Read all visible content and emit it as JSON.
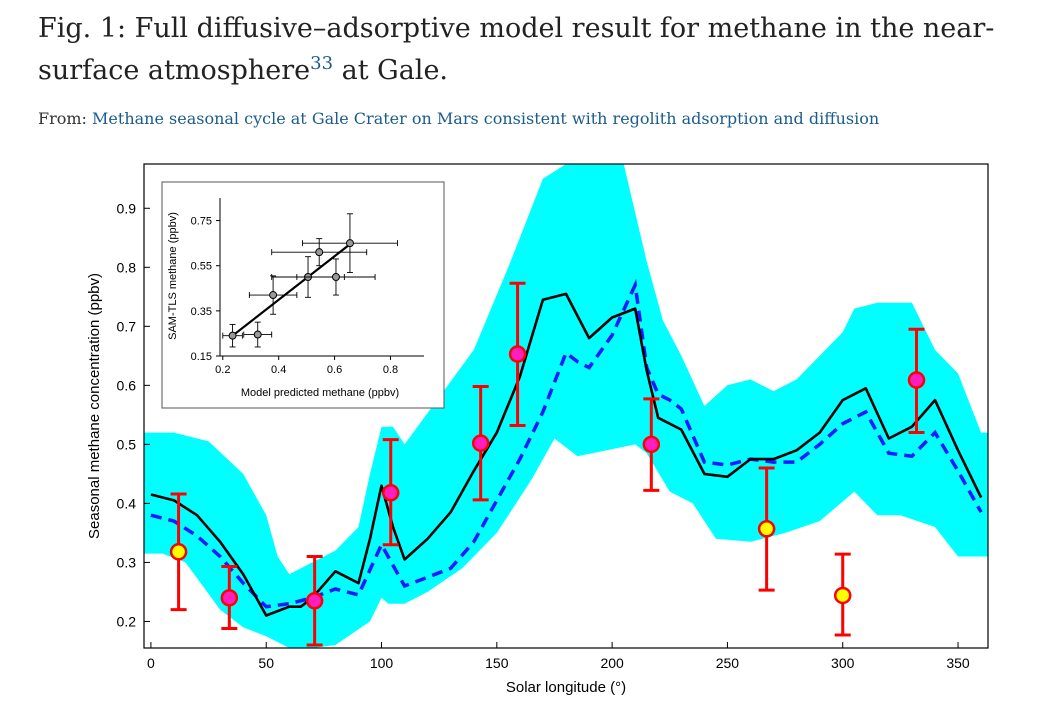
{
  "header": {
    "title_main": "Fig. 1: Full diffusive–adsorptive model result for methane in the near-surface atmosphere",
    "title_ref": "33",
    "title_end": " at Gale.",
    "from_label": "From: ",
    "source_link": "Methane seasonal cycle at Gale Crater on Mars consistent with regolith adsorption and diffusion"
  },
  "colors": {
    "envelope": "#00ffff",
    "model_line": "#000000",
    "dashed_line": "#1a1aff",
    "error_bar": "#ff0000",
    "point_magenta": "#ff1fbf",
    "point_yellow": "#ffff00"
  },
  "chart_data": [
    {
      "type": "line",
      "xlabel": "Solar longitude (°)",
      "ylabel": "Seasonal methane concentration (ppbv)",
      "xlim": [
        -3,
        363
      ],
      "ylim": [
        0.155,
        0.975
      ],
      "x_ticks": [
        0,
        50,
        100,
        150,
        200,
        250,
        300,
        350
      ],
      "y_ticks": [
        0.2,
        0.3,
        0.4,
        0.5,
        0.6,
        0.7,
        0.8,
        0.9
      ],
      "grid": false,
      "envelope": {
        "upper": [
          [
            -3,
            0.52
          ],
          [
            10,
            0.52
          ],
          [
            25,
            0.505
          ],
          [
            40,
            0.45
          ],
          [
            50,
            0.38
          ],
          [
            55,
            0.31
          ],
          [
            60,
            0.28
          ],
          [
            70,
            0.3
          ],
          [
            80,
            0.32
          ],
          [
            90,
            0.36
          ],
          [
            95,
            0.45
          ],
          [
            100,
            0.53
          ],
          [
            105,
            0.53
          ],
          [
            110,
            0.5
          ],
          [
            125,
            0.58
          ],
          [
            140,
            0.66
          ],
          [
            155,
            0.8
          ],
          [
            170,
            0.95
          ],
          [
            180,
            0.975
          ],
          [
            190,
            0.975
          ],
          [
            205,
            0.975
          ],
          [
            215,
            0.81
          ],
          [
            222,
            0.71
          ],
          [
            230,
            0.65
          ],
          [
            240,
            0.565
          ],
          [
            250,
            0.6
          ],
          [
            260,
            0.61
          ],
          [
            270,
            0.59
          ],
          [
            280,
            0.61
          ],
          [
            290,
            0.65
          ],
          [
            300,
            0.69
          ],
          [
            305,
            0.73
          ],
          [
            315,
            0.74
          ],
          [
            330,
            0.74
          ],
          [
            340,
            0.66
          ],
          [
            350,
            0.62
          ],
          [
            360,
            0.52
          ],
          [
            363,
            0.52
          ]
        ],
        "lower": [
          [
            -3,
            0.315
          ],
          [
            5,
            0.315
          ],
          [
            15,
            0.3
          ],
          [
            30,
            0.22
          ],
          [
            40,
            0.19
          ],
          [
            50,
            0.175
          ],
          [
            60,
            0.155
          ],
          [
            70,
            0.155
          ],
          [
            80,
            0.16
          ],
          [
            95,
            0.2
          ],
          [
            100,
            0.24
          ],
          [
            103,
            0.23
          ],
          [
            110,
            0.23
          ],
          [
            120,
            0.25
          ],
          [
            135,
            0.29
          ],
          [
            150,
            0.35
          ],
          [
            165,
            0.44
          ],
          [
            175,
            0.51
          ],
          [
            185,
            0.48
          ],
          [
            210,
            0.5
          ],
          [
            215,
            0.485
          ],
          [
            225,
            0.42
          ],
          [
            235,
            0.4
          ],
          [
            245,
            0.34
          ],
          [
            260,
            0.335
          ],
          [
            275,
            0.35
          ],
          [
            290,
            0.37
          ],
          [
            305,
            0.42
          ],
          [
            315,
            0.38
          ],
          [
            325,
            0.38
          ],
          [
            340,
            0.36
          ],
          [
            350,
            0.31
          ],
          [
            360,
            0.31
          ],
          [
            363,
            0.31
          ]
        ]
      },
      "series": [
        {
          "style": "solid",
          "x": [
            0,
            10,
            20,
            30,
            40,
            50,
            60,
            65,
            70,
            80,
            85,
            90,
            95,
            100,
            105,
            110,
            120,
            130,
            140,
            150,
            160,
            170,
            180,
            190,
            200,
            210,
            215,
            220,
            230,
            240,
            250,
            260,
            270,
            280,
            290,
            300,
            310,
            320,
            330,
            340,
            350,
            360
          ],
          "values": [
            0.415,
            0.405,
            0.38,
            0.335,
            0.28,
            0.21,
            0.225,
            0.225,
            0.24,
            0.285,
            0.275,
            0.265,
            0.34,
            0.43,
            0.36,
            0.305,
            0.34,
            0.385,
            0.455,
            0.52,
            0.615,
            0.745,
            0.755,
            0.68,
            0.715,
            0.73,
            0.625,
            0.545,
            0.525,
            0.45,
            0.445,
            0.475,
            0.475,
            0.49,
            0.52,
            0.575,
            0.595,
            0.51,
            0.53,
            0.575,
            0.49,
            0.41
          ]
        },
        {
          "style": "dashed",
          "x": [
            0,
            10,
            20,
            30,
            40,
            50,
            60,
            70,
            80,
            90,
            100,
            110,
            120,
            130,
            140,
            150,
            160,
            170,
            180,
            185,
            190,
            200,
            210,
            215,
            220,
            225,
            230,
            240,
            250,
            260,
            270,
            280,
            290,
            300,
            310,
            320,
            330,
            340,
            350,
            360
          ],
          "values": [
            0.38,
            0.37,
            0.345,
            0.31,
            0.265,
            0.225,
            0.23,
            0.24,
            0.255,
            0.245,
            0.33,
            0.26,
            0.275,
            0.29,
            0.335,
            0.405,
            0.475,
            0.555,
            0.655,
            0.64,
            0.63,
            0.685,
            0.77,
            0.63,
            0.585,
            0.575,
            0.56,
            0.47,
            0.465,
            0.475,
            0.47,
            0.47,
            0.5,
            0.535,
            0.555,
            0.485,
            0.48,
            0.52,
            0.455,
            0.385
          ]
        }
      ],
      "points": [
        {
          "x": 12,
          "y": 0.318,
          "err_low": 0.22,
          "err_high": 0.416,
          "color": "yellow"
        },
        {
          "x": 34,
          "y": 0.24,
          "err_low": 0.188,
          "err_high": 0.293,
          "color": "magenta"
        },
        {
          "x": 71,
          "y": 0.235,
          "err_low": 0.16,
          "err_high": 0.31,
          "color": "magenta"
        },
        {
          "x": 104,
          "y": 0.418,
          "err_low": 0.33,
          "err_high": 0.508,
          "color": "magenta"
        },
        {
          "x": 143,
          "y": 0.502,
          "err_low": 0.406,
          "err_high": 0.598,
          "color": "magenta"
        },
        {
          "x": 159,
          "y": 0.653,
          "err_low": 0.532,
          "err_high": 0.773,
          "color": "magenta"
        },
        {
          "x": 217,
          "y": 0.5,
          "err_low": 0.422,
          "err_high": 0.577,
          "color": "magenta"
        },
        {
          "x": 267,
          "y": 0.357,
          "err_low": 0.253,
          "err_high": 0.46,
          "color": "yellow"
        },
        {
          "x": 300,
          "y": 0.244,
          "err_low": 0.177,
          "err_high": 0.314,
          "color": "yellow"
        },
        {
          "x": 332,
          "y": 0.609,
          "err_low": 0.52,
          "err_high": 0.695,
          "color": "magenta"
        }
      ]
    },
    {
      "type": "scatter",
      "xlabel": "Model predicted methane (ppbv)",
      "ylabel": "SAM-TLS methane (ppbv)",
      "xlim": [
        0.19,
        0.92
      ],
      "ylim": [
        0.15,
        0.85
      ],
      "x_ticks": [
        0.2,
        0.4,
        0.6,
        0.8
      ],
      "y_ticks": [
        0.15,
        0.35,
        0.55,
        0.75
      ],
      "grid": false,
      "fit_line": [
        [
          0.235,
          0.24
        ],
        [
          0.66,
          0.65
        ]
      ],
      "points": [
        {
          "x": 0.235,
          "y": 0.24,
          "xerr": 0.035,
          "yerr": 0.05
        },
        {
          "x": 0.325,
          "y": 0.245,
          "xerr": 0.05,
          "yerr": 0.055
        },
        {
          "x": 0.38,
          "y": 0.42,
          "xerr": 0.085,
          "yerr": 0.085
        },
        {
          "x": 0.505,
          "y": 0.5,
          "xerr": 0.13,
          "yerr": 0.09
        },
        {
          "x": 0.545,
          "y": 0.61,
          "xerr": 0.17,
          "yerr": 0.06
        },
        {
          "x": 0.605,
          "y": 0.5,
          "xerr": 0.14,
          "yerr": 0.08
        },
        {
          "x": 0.655,
          "y": 0.65,
          "xerr": 0.17,
          "yerr": 0.13
        }
      ]
    }
  ]
}
